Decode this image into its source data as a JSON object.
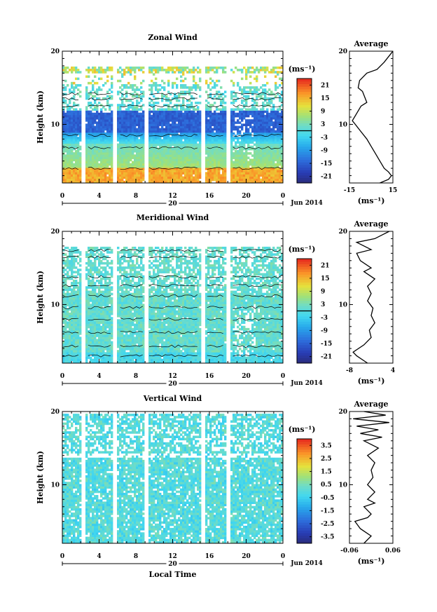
{
  "chart_data": [
    {
      "type": "heatmap",
      "title": "Zonal Wind",
      "ylabel": "Height (km)",
      "x_ticks": [
        "0",
        "4",
        "8",
        "12",
        "16",
        "20",
        "0"
      ],
      "x_range": [
        0,
        24
      ],
      "y_ticks": [
        "10",
        "20"
      ],
      "y_range": [
        2,
        20
      ],
      "date_label": "20",
      "month_label": "Jun 2014",
      "colorbar": {
        "unit": "(ms⁻¹)",
        "ticks": [
          "21",
          "15",
          "9",
          "3",
          "-3",
          "-9",
          "-15",
          "-21"
        ],
        "range": [
          -24,
          24
        ]
      },
      "profile": {
        "title": "Average",
        "xlabel": "(ms⁻¹)",
        "x_ticks": [
          "-15",
          "15"
        ],
        "x_range": [
          -15,
          15
        ],
        "y_ticks": [
          "10",
          "20"
        ],
        "y_range": [
          2,
          20
        ],
        "points": [
          [
            6,
            2
          ],
          [
            12,
            2.5
          ],
          [
            14,
            3
          ],
          [
            12,
            3.5
          ],
          [
            9,
            4
          ],
          [
            6,
            5
          ],
          [
            3,
            6
          ],
          [
            0,
            7
          ],
          [
            -3,
            8
          ],
          [
            -7,
            9
          ],
          [
            -11,
            10
          ],
          [
            -13,
            10.5
          ],
          [
            -10,
            11.5
          ],
          [
            -7,
            12.5
          ],
          [
            -3,
            13
          ],
          [
            -6,
            14.5
          ],
          [
            -9,
            15
          ],
          [
            -8,
            16
          ],
          [
            -3,
            17
          ],
          [
            4,
            17.5
          ],
          [
            9,
            18.5
          ],
          [
            13,
            19.5
          ],
          [
            15,
            20
          ]
        ]
      }
    },
    {
      "type": "heatmap",
      "title": "Meridional Wind",
      "ylabel": "Height (km)",
      "x_ticks": [
        "0",
        "4",
        "8",
        "12",
        "16",
        "20",
        "0"
      ],
      "x_range": [
        0,
        24
      ],
      "y_ticks": [
        "10",
        "20"
      ],
      "y_range": [
        2,
        20
      ],
      "date_label": "20",
      "month_label": "Jun 2014",
      "colorbar": {
        "unit": "(ms⁻¹)",
        "ticks": [
          "21",
          "15",
          "9",
          "3",
          "-3",
          "-9",
          "-15",
          "-21"
        ],
        "range": [
          -24,
          24
        ]
      },
      "profile": {
        "title": "Average",
        "xlabel": "(ms⁻¹)",
        "x_ticks": [
          "-8",
          "4"
        ],
        "x_range": [
          -8,
          4
        ],
        "y_ticks": [
          "10",
          "20"
        ],
        "y_range": [
          2,
          20
        ],
        "points": [
          [
            -3,
            2
          ],
          [
            -6,
            3
          ],
          [
            -7,
            3.5
          ],
          [
            -4,
            4.5
          ],
          [
            -2,
            5.5
          ],
          [
            -2.5,
            6.5
          ],
          [
            -1,
            7.5
          ],
          [
            -2,
            8.5
          ],
          [
            -1.5,
            9.5
          ],
          [
            -3,
            10.5
          ],
          [
            -2,
            11.5
          ],
          [
            -3,
            12.5
          ],
          [
            -1,
            13.5
          ],
          [
            -4,
            14.5
          ],
          [
            -2,
            15
          ],
          [
            -5,
            16
          ],
          [
            -6,
            17
          ],
          [
            -2,
            17.5
          ],
          [
            -6,
            18.5
          ],
          [
            -1,
            19
          ],
          [
            1,
            19.5
          ],
          [
            3,
            20
          ]
        ]
      }
    },
    {
      "type": "heatmap",
      "title": "Vertical Wind",
      "ylabel": "Height (km)",
      "xlabel": "Local Time",
      "x_ticks": [
        "0",
        "4",
        "8",
        "12",
        "16",
        "20",
        "0"
      ],
      "x_range": [
        0,
        24
      ],
      "y_ticks": [
        "10",
        "20"
      ],
      "y_range": [
        2,
        20
      ],
      "date_label": "20",
      "month_label": "Jun 2014",
      "colorbar": {
        "unit": "(ms⁻¹)",
        "ticks": [
          "3.5",
          "2.5",
          "1.5",
          "0.5",
          "-0.5",
          "-1.5",
          "-2.5",
          "-3.5"
        ],
        "range": [
          -4,
          4
        ]
      },
      "profile": {
        "title": "Average",
        "xlabel": "(ms⁻¹)",
        "x_ticks": [
          "-0.06",
          "0.06"
        ],
        "x_range": [
          -0.06,
          0.06
        ],
        "y_ticks": [
          "10",
          "20"
        ],
        "y_range": [
          2,
          20
        ],
        "points": [
          [
            -0.02,
            2
          ],
          [
            0.0,
            3
          ],
          [
            -0.03,
            4
          ],
          [
            -0.045,
            5
          ],
          [
            -0.01,
            5.5
          ],
          [
            0.0,
            6
          ],
          [
            -0.02,
            7
          ],
          [
            0.01,
            7.5
          ],
          [
            -0.01,
            8
          ],
          [
            0.01,
            9
          ],
          [
            -0.01,
            10
          ],
          [
            0.005,
            11
          ],
          [
            0.0,
            12
          ],
          [
            0.01,
            13
          ],
          [
            -0.01,
            14
          ],
          [
            0.02,
            15
          ],
          [
            -0.02,
            16
          ],
          [
            0.03,
            16.5
          ],
          [
            -0.03,
            17
          ],
          [
            0.02,
            17.5
          ],
          [
            -0.04,
            18
          ],
          [
            0.05,
            18.5
          ],
          [
            -0.05,
            19
          ],
          [
            0.04,
            19.5
          ],
          [
            -0.02,
            20
          ]
        ]
      }
    }
  ]
}
